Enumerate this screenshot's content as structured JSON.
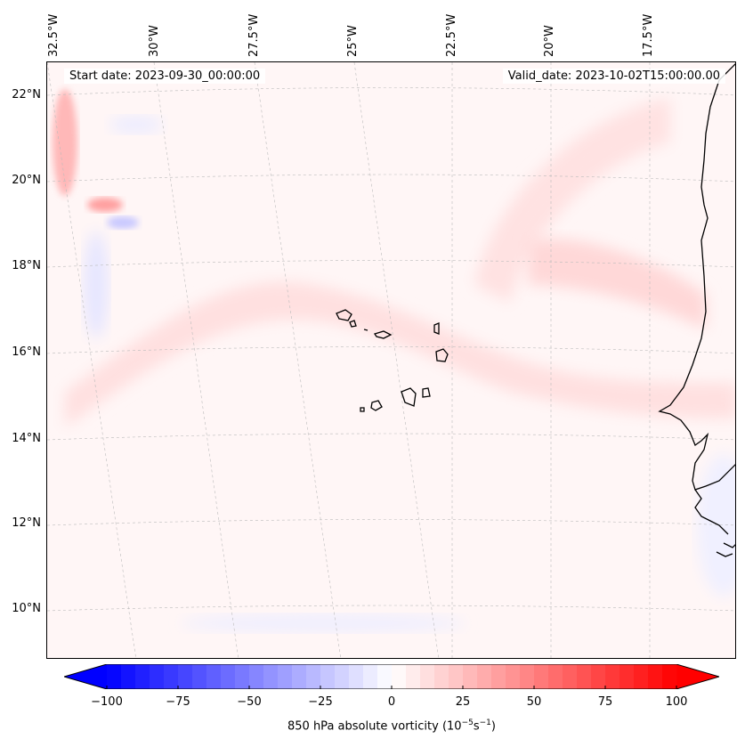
{
  "map": {
    "start_date": "Start date: 2023-09-30_00:00:00",
    "valid_date": "Valid_date: 2023-10-02T15:00:00.00",
    "lon_labels": [
      "32.5°W",
      "30°W",
      "27.5°W",
      "25°W",
      "22.5°W",
      "20°W",
      "17.5°W"
    ],
    "lat_labels": [
      "22°N",
      "20°N",
      "18°N",
      "16°N",
      "14°N",
      "12°N",
      "10°N"
    ]
  },
  "colorbar": {
    "label": "850 hPa absolute vorticity (10",
    "label_exp1": "−5",
    "label_mid": "s",
    "label_exp2": "−1",
    "label_end": ")",
    "ticks": [
      "−100",
      "−75",
      "−50",
      "−25",
      "0",
      "25",
      "50",
      "75",
      "100"
    ],
    "min_color": "#0000ff",
    "mid_color": "#ffffff",
    "max_color": "#ff0000"
  }
}
